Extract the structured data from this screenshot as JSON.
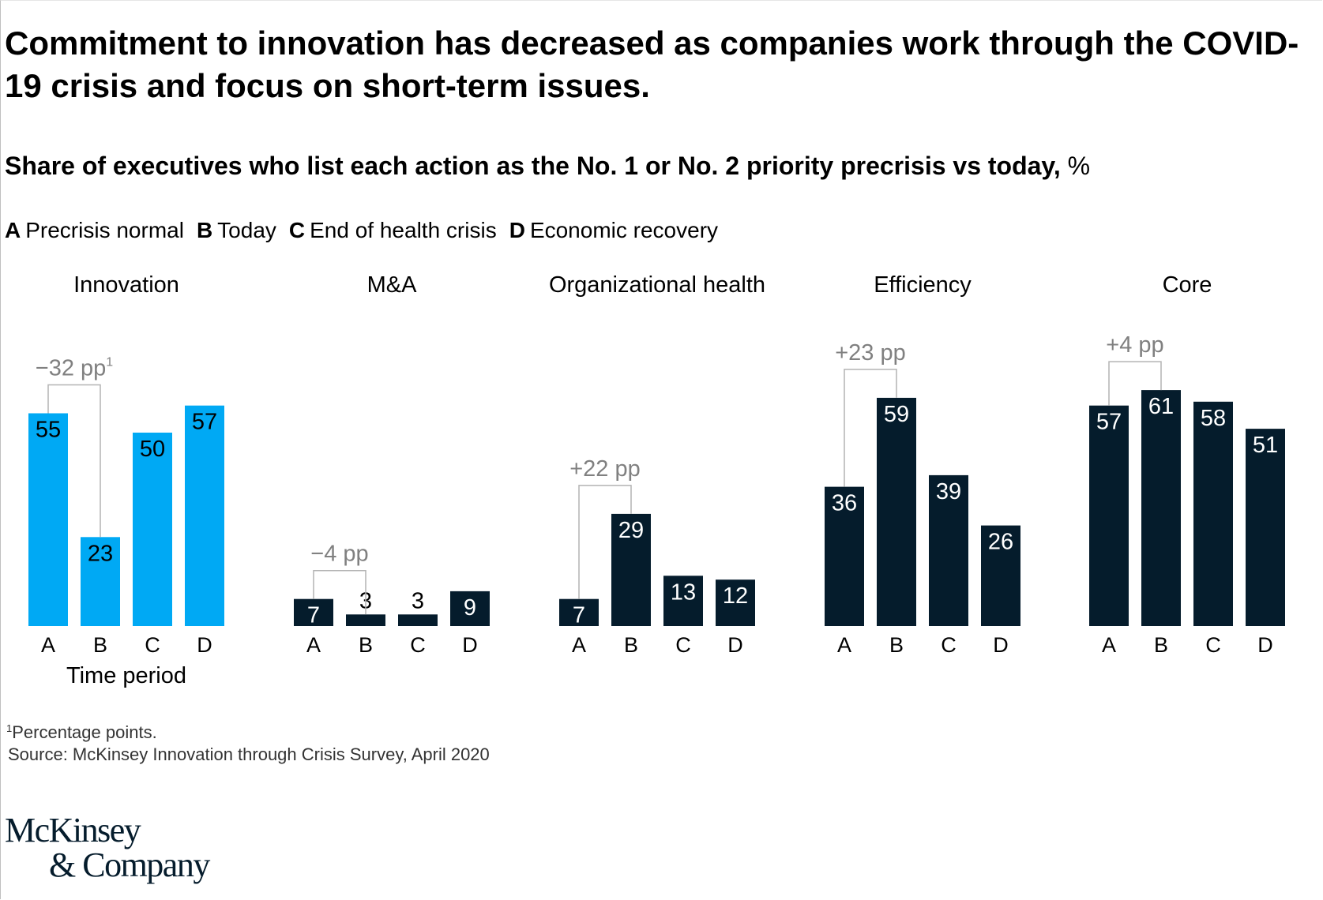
{
  "title": "Commitment to innovation has decreased as companies work through the COVID-19 crisis and focus on short-term issues.",
  "subtitle": "Share of executives who list each action as the No. 1 or No. 2 priority precrisis vs today,",
  "subtitle_unit": "%",
  "legend": [
    {
      "key": "A",
      "label": "Precrisis normal"
    },
    {
      "key": "B",
      "label": "Today"
    },
    {
      "key": "C",
      "label": "End of health crisis"
    },
    {
      "key": "D",
      "label": "Economic recovery"
    }
  ],
  "colors": {
    "highlight": "#00a9f4",
    "dark": "#051c2c",
    "bracket": "#b3b3b3",
    "bracket_text": "#808080"
  },
  "chart_data": {
    "type": "bar",
    "title": "Commitment to innovation has decreased as companies work through the COVID-19 crisis and focus on short-term issues.",
    "ylabel": "%",
    "xlabel": "Time period",
    "categories": [
      "A",
      "B",
      "C",
      "D"
    ],
    "ylim": [
      0,
      61
    ],
    "groups": [
      {
        "name": "Innovation",
        "values": [
          55,
          23,
          50,
          57
        ],
        "highlight": true,
        "change": "−32 pp",
        "change_sup": "1"
      },
      {
        "name": "M&A",
        "values": [
          7,
          3,
          3,
          9
        ],
        "highlight": false,
        "change": "−4 pp",
        "change_sup": ""
      },
      {
        "name": "Organizational health",
        "values": [
          7,
          29,
          13,
          12
        ],
        "highlight": false,
        "change": "+22 pp",
        "change_sup": ""
      },
      {
        "name": "Efficiency",
        "values": [
          36,
          59,
          39,
          26
        ],
        "highlight": false,
        "change": "+23 pp",
        "change_sup": ""
      },
      {
        "name": "Core",
        "values": [
          57,
          61,
          58,
          51
        ],
        "highlight": false,
        "change": "+4 pp",
        "change_sup": ""
      }
    ]
  },
  "footnote": {
    "sup": "1",
    "text": "Percentage points."
  },
  "source": "Source: McKinsey Innovation through Crisis Survey, April 2020",
  "logo": {
    "line1": "McKinsey",
    "line2": "& Company"
  }
}
